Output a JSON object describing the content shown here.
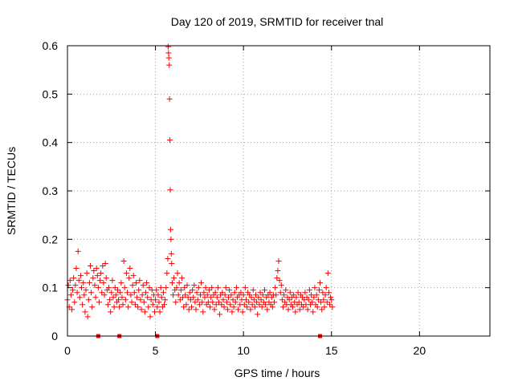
{
  "chart_data": {
    "type": "scatter",
    "title": "Day 120 of 2019, SRMTID for receiver tnal",
    "xlabel": "GPS time / hours",
    "ylabel": "SRMTID / TECUs",
    "xlim": [
      0,
      24
    ],
    "ylim": [
      0,
      0.6
    ],
    "x_ticks": [
      0,
      5,
      10,
      15,
      20
    ],
    "x_tick_labels": [
      "0",
      "5",
      "10",
      "15",
      "20"
    ],
    "y_ticks": [
      0,
      0.1,
      0.2,
      0.3,
      0.4,
      0.5,
      0.6
    ],
    "y_tick_labels": [
      "0",
      "0.1",
      "0.2",
      "0.3",
      "0.4",
      "0.5",
      "0.6"
    ],
    "grid": true,
    "marker": "plus",
    "color": "#ff0000",
    "series": [
      {
        "name": "SRMTID",
        "points": [
          [
            0.0,
            0.075
          ],
          [
            0.05,
            0.105
          ],
          [
            0.1,
            0.06
          ],
          [
            0.15,
            0.115
          ],
          [
            0.2,
            0.085
          ],
          [
            0.25,
            0.055
          ],
          [
            0.3,
            0.095
          ],
          [
            0.35,
            0.12
          ],
          [
            0.4,
            0.07
          ],
          [
            0.45,
            0.105
          ],
          [
            0.5,
            0.14
          ],
          [
            0.55,
            0.09
          ],
          [
            0.6,
            0.175
          ],
          [
            0.65,
            0.115
          ],
          [
            0.7,
            0.08
          ],
          [
            0.75,
            0.125
          ],
          [
            0.8,
            0.1
          ],
          [
            0.85,
            0.065
          ],
          [
            0.9,
            0.11
          ],
          [
            0.95,
            0.085
          ],
          [
            1.0,
            0.05
          ],
          [
            1.05,
            0.095
          ],
          [
            1.1,
            0.13
          ],
          [
            1.15,
            0.04
          ],
          [
            1.2,
            0.075
          ],
          [
            1.25,
            0.11
          ],
          [
            1.3,
            0.145
          ],
          [
            1.35,
            0.09
          ],
          [
            1.4,
            0.06
          ],
          [
            1.45,
            0.12
          ],
          [
            1.5,
            0.135
          ],
          [
            1.55,
            0.105
          ],
          [
            1.6,
            0.08
          ],
          [
            1.65,
            0.14
          ],
          [
            1.7,
            0.125
          ],
          [
            1.75,
            0.1
          ],
          [
            1.8,
            0.07
          ],
          [
            1.85,
            0.115
          ],
          [
            1.9,
            0.13
          ],
          [
            1.95,
            0.09
          ],
          [
            2.0,
            0.145
          ],
          [
            2.05,
            0.11
          ],
          [
            2.1,
            0.085
          ],
          [
            2.15,
            0.15
          ],
          [
            2.2,
            0.12
          ],
          [
            2.25,
            0.095
          ],
          [
            2.3,
            0.065
          ],
          [
            2.35,
            0.1
          ],
          [
            2.4,
            0.075
          ],
          [
            2.45,
            0.05
          ],
          [
            2.5,
            0.09
          ],
          [
            2.55,
            0.115
          ],
          [
            2.6,
            0.08
          ],
          [
            2.65,
            0.06
          ],
          [
            2.7,
            0.1
          ],
          [
            2.75,
            0.085
          ],
          [
            2.8,
            0.07
          ],
          [
            2.85,
            0.095
          ],
          [
            2.9,
            0.075
          ],
          [
            2.95,
            0.06
          ],
          [
            3.0,
            0.09
          ],
          [
            3.05,
            0.11
          ],
          [
            3.1,
            0.08
          ],
          [
            3.15,
            0.065
          ],
          [
            3.2,
            0.155
          ],
          [
            3.25,
            0.1
          ],
          [
            3.3,
            0.075
          ],
          [
            3.35,
            0.13
          ],
          [
            3.4,
            0.09
          ],
          [
            3.45,
            0.06
          ],
          [
            3.5,
            0.12
          ],
          [
            3.55,
            0.14
          ],
          [
            3.6,
            0.085
          ],
          [
            3.65,
            0.07
          ],
          [
            3.7,
            0.105
          ],
          [
            3.75,
            0.125
          ],
          [
            3.8,
            0.09
          ],
          [
            3.85,
            0.065
          ],
          [
            3.9,
            0.11
          ],
          [
            3.95,
            0.08
          ],
          [
            4.0,
            0.06
          ],
          [
            4.05,
            0.095
          ],
          [
            4.1,
            0.115
          ],
          [
            4.15,
            0.075
          ],
          [
            4.2,
            0.055
          ],
          [
            4.25,
            0.085
          ],
          [
            4.3,
            0.105
          ],
          [
            4.35,
            0.07
          ],
          [
            4.4,
            0.05
          ],
          [
            4.45,
            0.09
          ],
          [
            4.5,
            0.11
          ],
          [
            4.55,
            0.08
          ],
          [
            4.6,
            0.06
          ],
          [
            4.65,
            0.1
          ],
          [
            4.7,
            0.04
          ],
          [
            4.75,
            0.075
          ],
          [
            4.8,
            0.095
          ],
          [
            4.85,
            0.065
          ],
          [
            4.9,
            0.085
          ],
          [
            4.95,
            0.05
          ],
          [
            5.0,
            0.075
          ],
          [
            5.05,
            0.095
          ],
          [
            5.1,
            0.06
          ],
          [
            5.15,
            0.085
          ],
          [
            5.2,
            0.07
          ],
          [
            5.25,
            0.05
          ],
          [
            5.3,
            0.1
          ],
          [
            5.35,
            0.08
          ],
          [
            5.4,
            0.06
          ],
          [
            5.45,
            0.09
          ],
          [
            5.5,
            0.065
          ],
          [
            5.55,
            0.075
          ],
          [
            5.6,
            0.1
          ],
          [
            5.65,
            0.13
          ],
          [
            5.7,
            0.16
          ],
          [
            5.72,
            0.598
          ],
          [
            5.74,
            0.585
          ],
          [
            5.76,
            0.575
          ],
          [
            5.78,
            0.56
          ],
          [
            5.8,
            0.49
          ],
          [
            5.82,
            0.405
          ],
          [
            5.84,
            0.302
          ],
          [
            5.86,
            0.22
          ],
          [
            5.88,
            0.2
          ],
          [
            5.9,
            0.17
          ],
          [
            5.92,
            0.15
          ],
          [
            5.95,
            0.11
          ],
          [
            6.0,
            0.085
          ],
          [
            6.05,
            0.12
          ],
          [
            6.1,
            0.095
          ],
          [
            6.15,
            0.07
          ],
          [
            6.2,
            0.1
          ],
          [
            6.25,
            0.13
          ],
          [
            6.3,
            0.085
          ],
          [
            6.35,
            0.11
          ],
          [
            6.4,
            0.075
          ],
          [
            6.45,
            0.095
          ],
          [
            6.5,
            0.12
          ],
          [
            6.55,
            0.08
          ],
          [
            6.6,
            0.06
          ],
          [
            6.65,
            0.1
          ],
          [
            6.7,
            0.085
          ],
          [
            6.75,
            0.065
          ],
          [
            6.8,
            0.105
          ],
          [
            6.85,
            0.08
          ],
          [
            6.9,
            0.055
          ],
          [
            6.95,
            0.09
          ],
          [
            7.0,
            0.075
          ],
          [
            7.05,
            0.06
          ],
          [
            7.1,
            0.095
          ],
          [
            7.15,
            0.08
          ],
          [
            7.2,
            0.105
          ],
          [
            7.25,
            0.07
          ],
          [
            7.3,
            0.055
          ],
          [
            7.35,
            0.09
          ],
          [
            7.4,
            0.075
          ],
          [
            7.45,
            0.1
          ],
          [
            7.5,
            0.065
          ],
          [
            7.55,
            0.085
          ],
          [
            7.6,
            0.11
          ],
          [
            7.65,
            0.07
          ],
          [
            7.7,
            0.05
          ],
          [
            7.75,
            0.09
          ],
          [
            7.8,
            0.08
          ],
          [
            7.85,
            0.1
          ],
          [
            7.9,
            0.065
          ],
          [
            7.95,
            0.085
          ],
          [
            8.0,
            0.07
          ],
          [
            8.05,
            0.095
          ],
          [
            8.1,
            0.06
          ],
          [
            8.15,
            0.08
          ],
          [
            8.2,
            0.1
          ],
          [
            8.25,
            0.07
          ],
          [
            8.3,
            0.085
          ],
          [
            8.35,
            0.055
          ],
          [
            8.4,
            0.09
          ],
          [
            8.45,
            0.065
          ],
          [
            8.5,
            0.08
          ],
          [
            8.55,
            0.1
          ],
          [
            8.6,
            0.07
          ],
          [
            8.65,
            0.045
          ],
          [
            8.7,
            0.085
          ],
          [
            8.75,
            0.065
          ],
          [
            8.8,
            0.09
          ],
          [
            8.85,
            0.075
          ],
          [
            8.9,
            0.06
          ],
          [
            8.95,
            0.085
          ],
          [
            9.0,
            0.1
          ],
          [
            9.05,
            0.07
          ],
          [
            9.1,
            0.055
          ],
          [
            9.15,
            0.08
          ],
          [
            9.2,
            0.095
          ],
          [
            9.25,
            0.065
          ],
          [
            9.3,
            0.085
          ],
          [
            9.35,
            0.05
          ],
          [
            9.4,
            0.075
          ],
          [
            9.45,
            0.06
          ],
          [
            9.5,
            0.09
          ],
          [
            9.55,
            0.07
          ],
          [
            9.6,
            0.1
          ],
          [
            9.65,
            0.08
          ],
          [
            9.7,
            0.055
          ],
          [
            9.75,
            0.085
          ],
          [
            9.8,
            0.065
          ],
          [
            9.85,
            0.09
          ],
          [
            9.9,
            0.075
          ],
          [
            9.95,
            0.05
          ],
          [
            10.0,
            0.085
          ],
          [
            10.05,
            0.065
          ],
          [
            10.1,
            0.1
          ],
          [
            10.15,
            0.075
          ],
          [
            10.2,
            0.06
          ],
          [
            10.25,
            0.09
          ],
          [
            10.3,
            0.07
          ],
          [
            10.35,
            0.085
          ],
          [
            10.4,
            0.055
          ],
          [
            10.45,
            0.08
          ],
          [
            10.5,
            0.065
          ],
          [
            10.55,
            0.095
          ],
          [
            10.6,
            0.075
          ],
          [
            10.65,
            0.06
          ],
          [
            10.7,
            0.085
          ],
          [
            10.75,
            0.07
          ],
          [
            10.8,
            0.045
          ],
          [
            10.85,
            0.08
          ],
          [
            10.9,
            0.065
          ],
          [
            10.95,
            0.09
          ],
          [
            11.0,
            0.075
          ],
          [
            11.05,
            0.06
          ],
          [
            11.1,
            0.085
          ],
          [
            11.15,
            0.07
          ],
          [
            11.2,
            0.095
          ],
          [
            11.25,
            0.065
          ],
          [
            11.3,
            0.08
          ],
          [
            11.35,
            0.055
          ],
          [
            11.4,
            0.085
          ],
          [
            11.45,
            0.07
          ],
          [
            11.5,
            0.09
          ],
          [
            11.55,
            0.065
          ],
          [
            11.6,
            0.08
          ],
          [
            11.65,
            0.06
          ],
          [
            11.7,
            0.085
          ],
          [
            11.75,
            0.07
          ],
          [
            11.8,
            0.1
          ],
          [
            11.85,
            0.085
          ],
          [
            11.9,
            0.12
          ],
          [
            11.95,
            0.135
          ],
          [
            12.0,
            0.155
          ],
          [
            12.05,
            0.115
          ],
          [
            12.1,
            0.09
          ],
          [
            12.15,
            0.105
          ],
          [
            12.2,
            0.075
          ],
          [
            12.25,
            0.06
          ],
          [
            12.3,
            0.085
          ],
          [
            12.35,
            0.07
          ],
          [
            12.4,
            0.095
          ],
          [
            12.45,
            0.065
          ],
          [
            12.5,
            0.08
          ],
          [
            12.55,
            0.055
          ],
          [
            12.6,
            0.075
          ],
          [
            12.65,
            0.09
          ],
          [
            12.7,
            0.065
          ],
          [
            12.75,
            0.08
          ],
          [
            12.8,
            0.06
          ],
          [
            12.85,
            0.085
          ],
          [
            12.9,
            0.07
          ],
          [
            12.95,
            0.05
          ],
          [
            13.0,
            0.08
          ],
          [
            13.05,
            0.065
          ],
          [
            13.1,
            0.09
          ],
          [
            13.15,
            0.07
          ],
          [
            13.2,
            0.055
          ],
          [
            13.25,
            0.085
          ],
          [
            13.3,
            0.065
          ],
          [
            13.35,
            0.08
          ],
          [
            13.4,
            0.06
          ],
          [
            13.45,
            0.075
          ],
          [
            13.5,
            0.09
          ],
          [
            13.55,
            0.065
          ],
          [
            13.6,
            0.08
          ],
          [
            13.65,
            0.055
          ],
          [
            13.7,
            0.075
          ],
          [
            13.75,
            0.095
          ],
          [
            13.8,
            0.065
          ],
          [
            13.85,
            0.085
          ],
          [
            13.9,
            0.07
          ],
          [
            13.95,
            0.05
          ],
          [
            14.0,
            0.08
          ],
          [
            14.05,
            0.1
          ],
          [
            14.1,
            0.065
          ],
          [
            14.15,
            0.085
          ],
          [
            14.2,
            0.06
          ],
          [
            14.25,
            0.075
          ],
          [
            14.3,
            0.095
          ],
          [
            14.35,
            0.11
          ],
          [
            14.4,
            0.07
          ],
          [
            14.45,
            0.055
          ],
          [
            14.5,
            0.09
          ],
          [
            14.55,
            0.075
          ],
          [
            14.6,
            0.06
          ],
          [
            14.65,
            0.085
          ],
          [
            14.7,
            0.1
          ],
          [
            14.75,
            0.07
          ],
          [
            14.8,
            0.13
          ],
          [
            14.85,
            0.09
          ],
          [
            14.9,
            0.065
          ],
          [
            14.95,
            0.08
          ],
          [
            15.0,
            0.075
          ],
          [
            15.05,
            0.06
          ]
        ]
      }
    ],
    "gap_markers_x": [
      1.75,
      2.95,
      5.1,
      14.35
    ]
  }
}
